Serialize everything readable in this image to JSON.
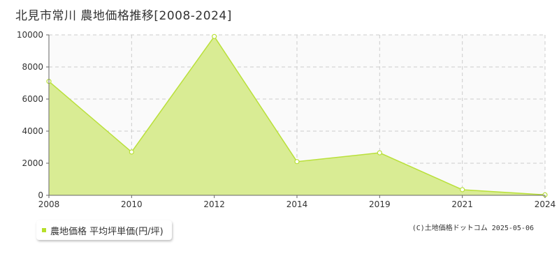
{
  "title": "北見市常川 農地価格推移[2008-2024]",
  "legend": {
    "label": "農地価格 平均坪単価(円/坪)"
  },
  "credit": "(C)土地価格ドットコム 2025-05-06",
  "colors": {
    "fill": "#d9ec94",
    "line": "#b9e03a",
    "marker_fill": "#ffffff",
    "plot_bg": "#fafafa",
    "grid": "#cccccc",
    "axis": "#666666"
  },
  "chart_data": {
    "type": "area",
    "x": [
      "2008",
      "2010",
      "2012",
      "2014",
      "2019",
      "2021",
      "2024"
    ],
    "series": [
      {
        "values": [
          7100,
          2700,
          9900,
          2100,
          2650,
          350,
          30
        ]
      }
    ],
    "ylim": [
      0,
      10000
    ],
    "yticks": [
      0,
      2000,
      4000,
      6000,
      8000,
      10000
    ],
    "grid": true,
    "legend_position": "bottom-left"
  }
}
